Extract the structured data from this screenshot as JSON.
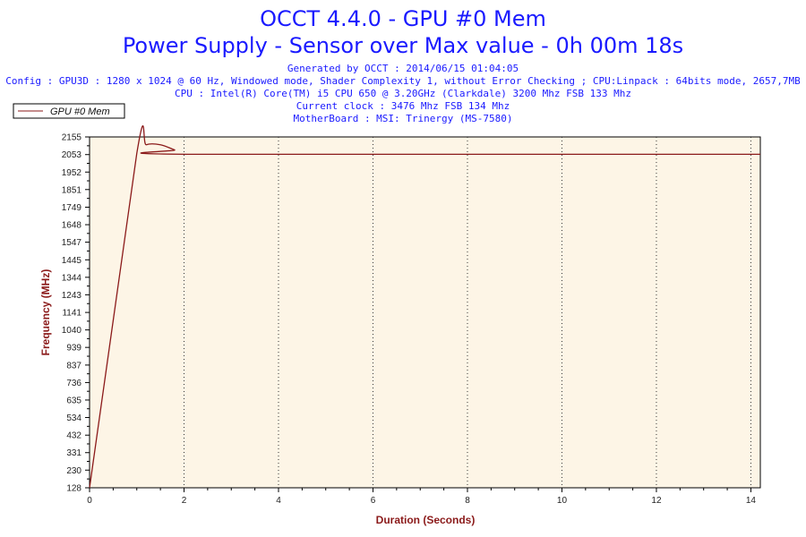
{
  "header": {
    "title_line1": "OCCT 4.4.0 - GPU #0 Mem",
    "title_line2": "Power Supply - Sensor over Max value - 0h 00m 18s",
    "generated": "Generated by OCCT : 2014/06/15 01:04:05",
    "config": "Config : GPU3D : 1280 x 1024 @ 60 Hz, Windowed mode, Shader Complexity 1, without Error Checking ; CPU:Linpack : 64bits mode, 2657,7MB",
    "cpu": "CPU : Intel(R) Core(TM) i5 CPU 650 @ 3.20GHz (Clarkdale) 3200 Mhz FSB 133 Mhz",
    "clock": "Current clock : 3476 Mhz FSB 134 Mhz",
    "motherboard": "MotherBoard : MSI: Trinergy (MS-7580)"
  },
  "chart_data": {
    "type": "line",
    "xlabel": "Duration (Seconds)",
    "ylabel": "Frequency (MHz)",
    "xlim": [
      0,
      14.2
    ],
    "ylim": [
      128,
      2155
    ],
    "x_ticks": [
      0,
      2,
      4,
      6,
      8,
      10,
      12,
      14
    ],
    "y_ticks": [
      128,
      230,
      331,
      432,
      534,
      635,
      736,
      837,
      939,
      1040,
      1141,
      1243,
      1344,
      1445,
      1547,
      1648,
      1749,
      1851,
      1952,
      2053,
      2155
    ],
    "grid": "vertical dotted lines at x ticks",
    "legend_position": "top-left",
    "series": [
      {
        "name": "GPU #0 Mem",
        "color": "#8b1a1a",
        "points": [
          [
            0,
            128
          ],
          [
            1.0,
            2060
          ],
          [
            1.2,
            2110
          ],
          [
            1.5,
            2110
          ],
          [
            1.8,
            2080
          ],
          [
            2.05,
            2055
          ],
          [
            14.2,
            2055
          ]
        ]
      }
    ]
  },
  "colors": {
    "plot_background": "#fdf5e6",
    "series_line": "#8b1a1a",
    "title": "#1a1aff",
    "axis_label": "#8b1a1a"
  }
}
